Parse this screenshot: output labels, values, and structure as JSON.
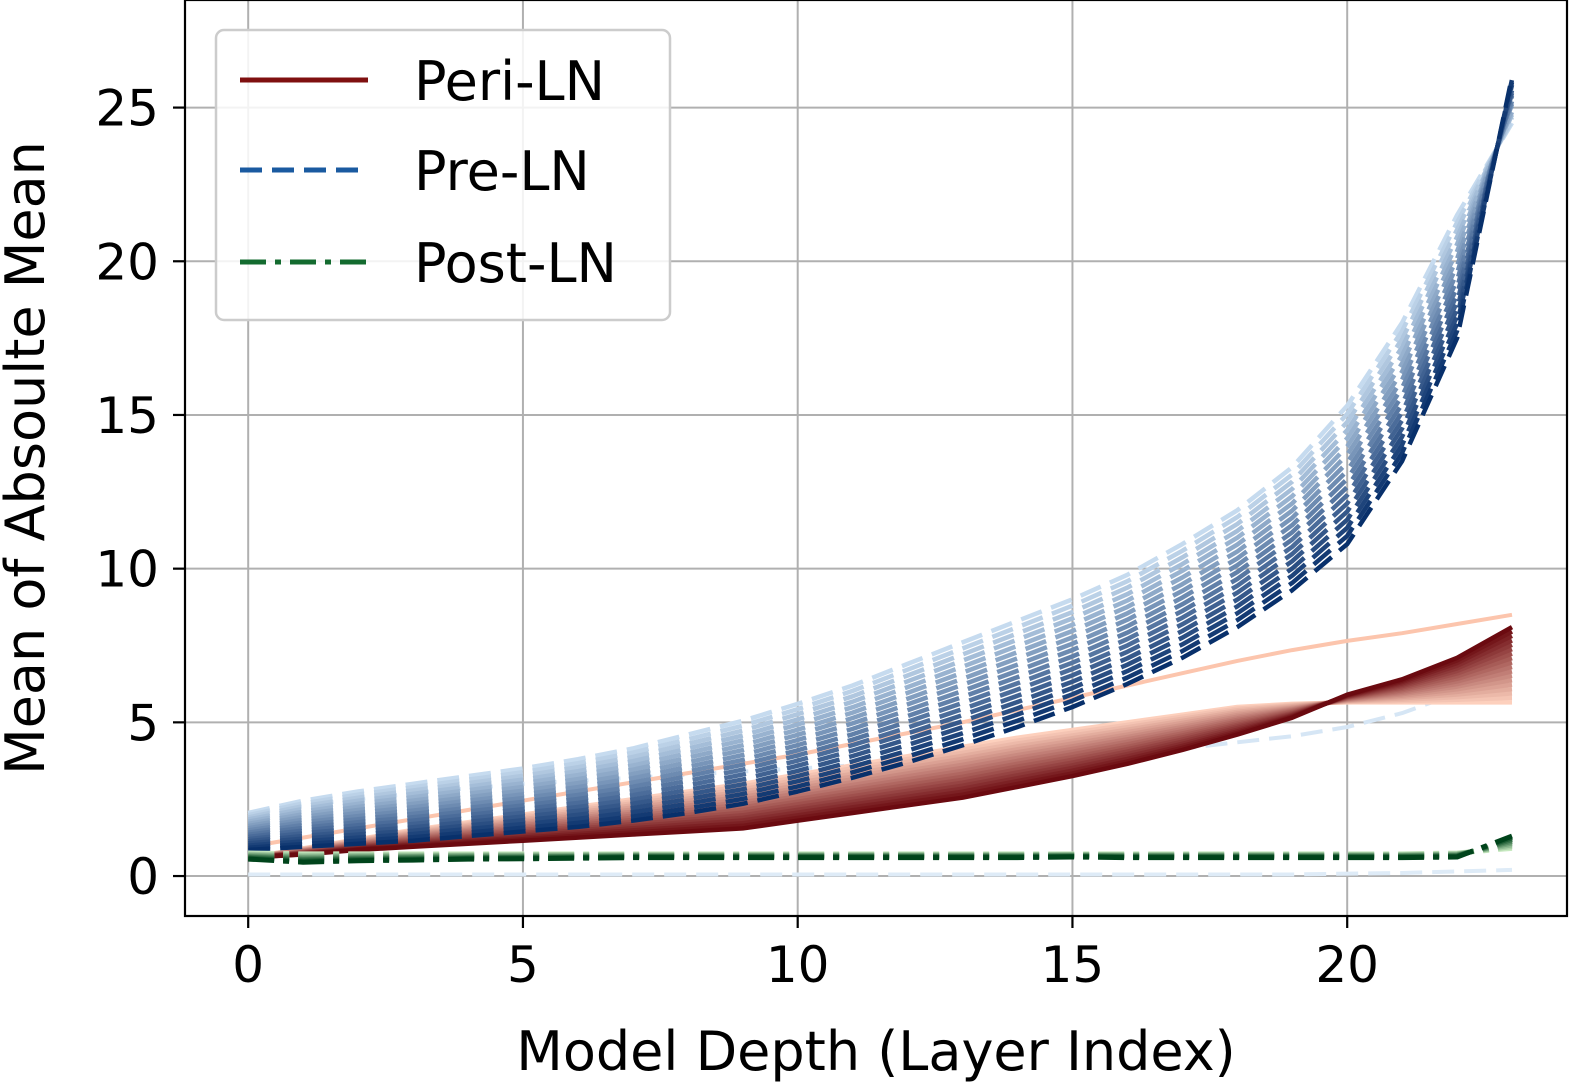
{
  "chart_data": {
    "type": "line",
    "xlabel": "Model Depth (Layer Index)",
    "ylabel": "Mean of Absoulte Mean",
    "xlim": [
      -1.15,
      24.0
    ],
    "ylim": [
      -1.3,
      28.5
    ],
    "xticks": [
      0,
      5,
      10,
      15,
      20
    ],
    "yticks": [
      0,
      5,
      10,
      15,
      20,
      25
    ],
    "grid": true,
    "legend": {
      "position": "top-left",
      "entries": [
        {
          "label": "Peri-LN",
          "color": "#7f1010",
          "dash": "solid"
        },
        {
          "label": "Pre-LN",
          "color": "#1a5aa0",
          "dash": "dashed"
        },
        {
          "label": "Post-LN",
          "color": "#136b2f",
          "dash": "dashdot"
        }
      ]
    },
    "x": [
      0,
      1,
      2,
      3,
      4,
      5,
      6,
      7,
      8,
      9,
      10,
      11,
      12,
      13,
      14,
      15,
      16,
      17,
      18,
      19,
      20,
      21,
      22,
      23
    ],
    "series_groups": [
      {
        "family": "Peri-LN",
        "style": "solid",
        "color_light": "#fdd0bd",
        "color_dark": "#6b0a10",
        "count": 18,
        "first": [
          0.6,
          0.9,
          1.2,
          1.5,
          1.75,
          2.0,
          2.25,
          2.5,
          2.75,
          3.0,
          3.3,
          3.6,
          3.9,
          4.2,
          4.5,
          4.75,
          5.0,
          5.25,
          5.5,
          5.6,
          5.65,
          5.65,
          5.65,
          5.65
        ],
        "last": [
          0.6,
          0.7,
          0.85,
          0.95,
          1.05,
          1.15,
          1.25,
          1.35,
          1.45,
          1.55,
          1.8,
          2.05,
          2.3,
          2.55,
          2.9,
          3.25,
          3.65,
          4.1,
          4.6,
          5.15,
          5.9,
          6.4,
          7.1,
          8.1
        ]
      },
      {
        "family": "Pre-LN",
        "style": "dashed",
        "color_light": "#c6dbef",
        "color_dark": "#08306b",
        "count": 18,
        "first": [
          2.05,
          2.45,
          2.75,
          3.0,
          3.25,
          3.5,
          3.8,
          4.15,
          4.6,
          5.05,
          5.6,
          6.2,
          6.9,
          7.6,
          8.3,
          9.0,
          9.8,
          10.8,
          11.9,
          13.3,
          15.3,
          18.0,
          21.5,
          24.5
        ],
        "last": [
          0.85,
          0.95,
          1.05,
          1.15,
          1.3,
          1.45,
          1.6,
          1.8,
          2.05,
          2.35,
          2.75,
          3.2,
          3.7,
          4.25,
          4.85,
          5.5,
          6.25,
          7.1,
          8.1,
          9.3,
          10.8,
          13.5,
          17.5,
          26.0
        ]
      },
      {
        "family": "Post-LN",
        "style": "dashdot",
        "color_light": "#c7e9c0",
        "color_dark": "#00441b",
        "count": 8,
        "first": [
          0.75,
          0.72,
          0.72,
          0.72,
          0.72,
          0.72,
          0.72,
          0.72,
          0.72,
          0.72,
          0.72,
          0.72,
          0.72,
          0.72,
          0.72,
          0.72,
          0.72,
          0.72,
          0.72,
          0.72,
          0.72,
          0.72,
          0.75,
          0.9
        ],
        "last": [
          0.55,
          0.45,
          0.5,
          0.52,
          0.55,
          0.56,
          0.58,
          0.6,
          0.6,
          0.6,
          0.6,
          0.6,
          0.6,
          0.6,
          0.6,
          0.62,
          0.6,
          0.6,
          0.6,
          0.6,
          0.6,
          0.6,
          0.62,
          1.3
        ]
      }
    ],
    "extra_series": [
      {
        "name": "",
        "style": "dashed",
        "color": "#d6e6f5",
        "values": [
          2.05,
          2.3,
          2.5,
          2.7,
          2.85,
          3.0,
          3.1,
          3.2,
          3.3,
          3.4,
          3.5,
          3.6,
          3.7,
          3.75,
          3.85,
          3.95,
          4.05,
          4.15,
          4.35,
          4.55,
          4.85,
          5.3,
          5.95,
          6.7
        ]
      },
      {
        "name": "",
        "style": "dashed",
        "color": "#deebf7",
        "values": [
          0.05,
          0.05,
          0.05,
          0.05,
          0.05,
          0.05,
          0.05,
          0.05,
          0.05,
          0.05,
          0.05,
          0.05,
          0.05,
          0.05,
          0.05,
          0.05,
          0.05,
          0.05,
          0.05,
          0.05,
          0.08,
          0.1,
          0.15,
          0.2
        ]
      },
      {
        "name": "",
        "style": "solid",
        "color": "#fcc5ad",
        "values": [
          0.95,
          1.25,
          1.55,
          1.85,
          2.15,
          2.45,
          2.75,
          3.05,
          3.35,
          3.65,
          3.95,
          4.3,
          4.65,
          5.0,
          5.4,
          5.8,
          6.2,
          6.6,
          7.0,
          7.35,
          7.65,
          7.9,
          8.2,
          8.5
        ]
      }
    ]
  }
}
